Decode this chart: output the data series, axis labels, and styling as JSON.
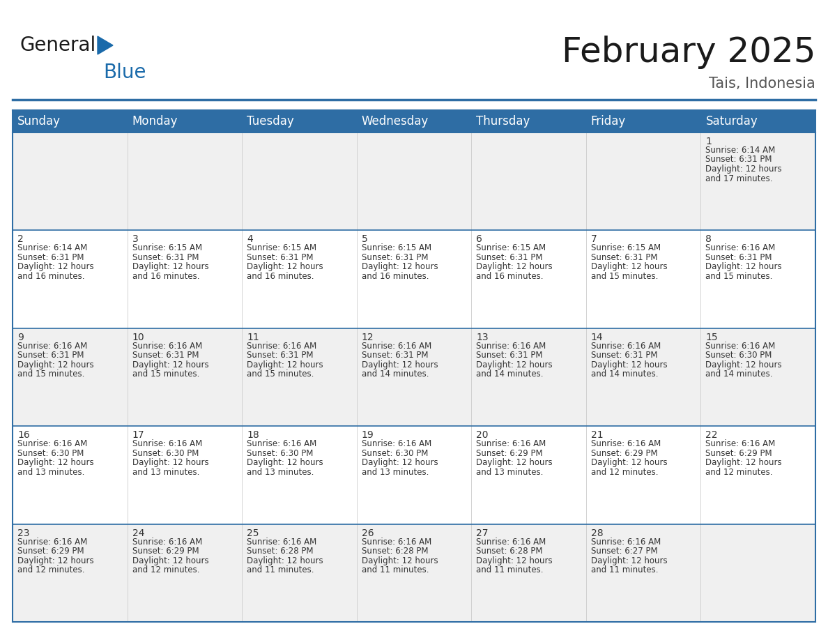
{
  "title": "February 2025",
  "subtitle": "Tais, Indonesia",
  "header_bg": "#2E6DA4",
  "header_text_color": "#FFFFFF",
  "day_names": [
    "Sunday",
    "Monday",
    "Tuesday",
    "Wednesday",
    "Thursday",
    "Friday",
    "Saturday"
  ],
  "title_fontsize": 36,
  "subtitle_fontsize": 15,
  "header_fontsize": 12,
  "cell_fontsize": 8.5,
  "day_num_fontsize": 10,
  "bg_color": "#FFFFFF",
  "cell_bg_row0": "#F0F0F0",
  "cell_bg_row1": "#FFFFFF",
  "cell_bg_row2": "#F0F0F0",
  "cell_bg_row3": "#FFFFFF",
  "cell_bg_row4": "#F0F0F0",
  "border_color": "#2E6DA4",
  "sep_color": "#CCCCCC",
  "text_color": "#333333",
  "days": [
    {
      "date": 1,
      "col": 6,
      "row": 0,
      "sunrise": "6:14 AM",
      "sunset": "6:31 PM",
      "daylight": "12 hours and 17 minutes."
    },
    {
      "date": 2,
      "col": 0,
      "row": 1,
      "sunrise": "6:14 AM",
      "sunset": "6:31 PM",
      "daylight": "12 hours and 16 minutes."
    },
    {
      "date": 3,
      "col": 1,
      "row": 1,
      "sunrise": "6:15 AM",
      "sunset": "6:31 PM",
      "daylight": "12 hours and 16 minutes."
    },
    {
      "date": 4,
      "col": 2,
      "row": 1,
      "sunrise": "6:15 AM",
      "sunset": "6:31 PM",
      "daylight": "12 hours and 16 minutes."
    },
    {
      "date": 5,
      "col": 3,
      "row": 1,
      "sunrise": "6:15 AM",
      "sunset": "6:31 PM",
      "daylight": "12 hours and 16 minutes."
    },
    {
      "date": 6,
      "col": 4,
      "row": 1,
      "sunrise": "6:15 AM",
      "sunset": "6:31 PM",
      "daylight": "12 hours and 16 minutes."
    },
    {
      "date": 7,
      "col": 5,
      "row": 1,
      "sunrise": "6:15 AM",
      "sunset": "6:31 PM",
      "daylight": "12 hours and 15 minutes."
    },
    {
      "date": 8,
      "col": 6,
      "row": 1,
      "sunrise": "6:16 AM",
      "sunset": "6:31 PM",
      "daylight": "12 hours and 15 minutes."
    },
    {
      "date": 9,
      "col": 0,
      "row": 2,
      "sunrise": "6:16 AM",
      "sunset": "6:31 PM",
      "daylight": "12 hours and 15 minutes."
    },
    {
      "date": 10,
      "col": 1,
      "row": 2,
      "sunrise": "6:16 AM",
      "sunset": "6:31 PM",
      "daylight": "12 hours and 15 minutes."
    },
    {
      "date": 11,
      "col": 2,
      "row": 2,
      "sunrise": "6:16 AM",
      "sunset": "6:31 PM",
      "daylight": "12 hours and 15 minutes."
    },
    {
      "date": 12,
      "col": 3,
      "row": 2,
      "sunrise": "6:16 AM",
      "sunset": "6:31 PM",
      "daylight": "12 hours and 14 minutes."
    },
    {
      "date": 13,
      "col": 4,
      "row": 2,
      "sunrise": "6:16 AM",
      "sunset": "6:31 PM",
      "daylight": "12 hours and 14 minutes."
    },
    {
      "date": 14,
      "col": 5,
      "row": 2,
      "sunrise": "6:16 AM",
      "sunset": "6:31 PM",
      "daylight": "12 hours and 14 minutes."
    },
    {
      "date": 15,
      "col": 6,
      "row": 2,
      "sunrise": "6:16 AM",
      "sunset": "6:30 PM",
      "daylight": "12 hours and 14 minutes."
    },
    {
      "date": 16,
      "col": 0,
      "row": 3,
      "sunrise": "6:16 AM",
      "sunset": "6:30 PM",
      "daylight": "12 hours and 13 minutes."
    },
    {
      "date": 17,
      "col": 1,
      "row": 3,
      "sunrise": "6:16 AM",
      "sunset": "6:30 PM",
      "daylight": "12 hours and 13 minutes."
    },
    {
      "date": 18,
      "col": 2,
      "row": 3,
      "sunrise": "6:16 AM",
      "sunset": "6:30 PM",
      "daylight": "12 hours and 13 minutes."
    },
    {
      "date": 19,
      "col": 3,
      "row": 3,
      "sunrise": "6:16 AM",
      "sunset": "6:30 PM",
      "daylight": "12 hours and 13 minutes."
    },
    {
      "date": 20,
      "col": 4,
      "row": 3,
      "sunrise": "6:16 AM",
      "sunset": "6:29 PM",
      "daylight": "12 hours and 13 minutes."
    },
    {
      "date": 21,
      "col": 5,
      "row": 3,
      "sunrise": "6:16 AM",
      "sunset": "6:29 PM",
      "daylight": "12 hours and 12 minutes."
    },
    {
      "date": 22,
      "col": 6,
      "row": 3,
      "sunrise": "6:16 AM",
      "sunset": "6:29 PM",
      "daylight": "12 hours and 12 minutes."
    },
    {
      "date": 23,
      "col": 0,
      "row": 4,
      "sunrise": "6:16 AM",
      "sunset": "6:29 PM",
      "daylight": "12 hours and 12 minutes."
    },
    {
      "date": 24,
      "col": 1,
      "row": 4,
      "sunrise": "6:16 AM",
      "sunset": "6:29 PM",
      "daylight": "12 hours and 12 minutes."
    },
    {
      "date": 25,
      "col": 2,
      "row": 4,
      "sunrise": "6:16 AM",
      "sunset": "6:28 PM",
      "daylight": "12 hours and 11 minutes."
    },
    {
      "date": 26,
      "col": 3,
      "row": 4,
      "sunrise": "6:16 AM",
      "sunset": "6:28 PM",
      "daylight": "12 hours and 11 minutes."
    },
    {
      "date": 27,
      "col": 4,
      "row": 4,
      "sunrise": "6:16 AM",
      "sunset": "6:28 PM",
      "daylight": "12 hours and 11 minutes."
    },
    {
      "date": 28,
      "col": 5,
      "row": 4,
      "sunrise": "6:16 AM",
      "sunset": "6:27 PM",
      "daylight": "12 hours and 11 minutes."
    }
  ],
  "num_rows": 5,
  "logo_text1": "General",
  "logo_text2": "Blue",
  "logo_color1": "#1a1a1a",
  "logo_color2": "#1a6aaa"
}
